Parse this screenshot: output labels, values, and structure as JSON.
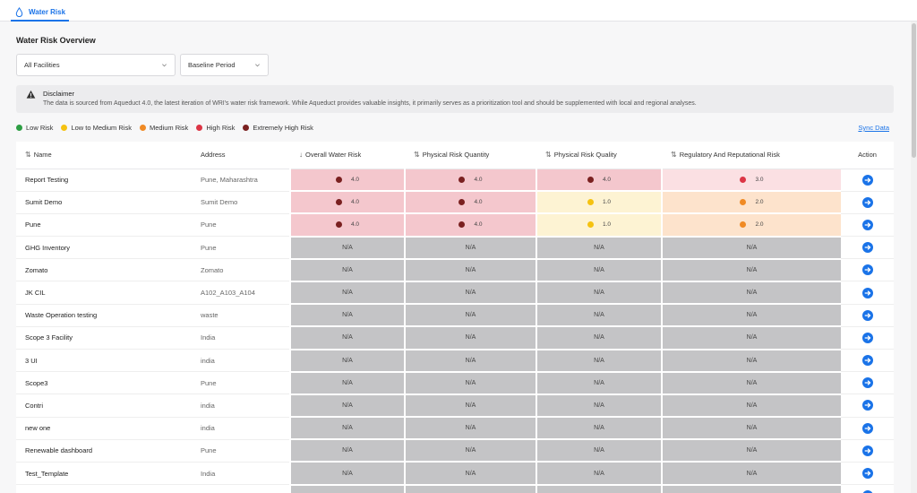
{
  "tab": {
    "label": "Water Risk",
    "icon": "water-drop-icon"
  },
  "page": {
    "title": "Water Risk Overview"
  },
  "filters": {
    "facility": {
      "value": "All Facilities"
    },
    "period": {
      "value": "Baseline Period"
    }
  },
  "disclaimer": {
    "title": "Disclaimer",
    "text": "The data is sourced from Aqueduct 4.0, the latest iteration of WRI's water risk framework. While Aqueduct provides valuable insights, it primarily serves as a prioritization tool and should be supplemented with local and regional analyses."
  },
  "legend": [
    {
      "label": "Low Risk",
      "color": "#2e9e44"
    },
    {
      "label": "Low to Medium Risk",
      "color": "#f5c211"
    },
    {
      "label": "Medium Risk",
      "color": "#f08a24"
    },
    {
      "label": "High Risk",
      "color": "#dc3545"
    },
    {
      "label": "Extremely High Risk",
      "color": "#7a2020"
    }
  ],
  "sync_label": "Sync Data",
  "columns": {
    "name": "Name",
    "address": "Address",
    "overall": "Overall Water Risk",
    "quantity": "Physical Risk Quantity",
    "quality": "Physical Risk Quality",
    "regulatory": "Regulatory And Reputational Risk",
    "action": "Action"
  },
  "na_label": "N/A",
  "rows": [
    {
      "name": "Report Testing",
      "address": "Pune, Maharashtra",
      "risks": [
        {
          "value": "4.0",
          "level": "extreme"
        },
        {
          "value": "4.0",
          "level": "extreme"
        },
        {
          "value": "4.0",
          "level": "extreme"
        },
        {
          "value": "3.0",
          "level": "high"
        }
      ]
    },
    {
      "name": "Sumit Demo",
      "address": "Sumit Demo",
      "risks": [
        {
          "value": "4.0",
          "level": "extreme"
        },
        {
          "value": "4.0",
          "level": "extreme"
        },
        {
          "value": "1.0",
          "level": "lowmed"
        },
        {
          "value": "2.0",
          "level": "medium"
        }
      ]
    },
    {
      "name": "Pune",
      "address": "Pune",
      "risks": [
        {
          "value": "4.0",
          "level": "extreme"
        },
        {
          "value": "4.0",
          "level": "extreme"
        },
        {
          "value": "1.0",
          "level": "lowmed"
        },
        {
          "value": "2.0",
          "level": "medium"
        }
      ]
    },
    {
      "name": "GHG Inventory",
      "address": "Pune",
      "risks": null
    },
    {
      "name": "Zomato",
      "address": "Zomato",
      "risks": null
    },
    {
      "name": "JK CIL",
      "address": "A102_A103_A104",
      "risks": null
    },
    {
      "name": "Waste Operation testing",
      "address": "waste",
      "risks": null
    },
    {
      "name": "Scope 3 Facility",
      "address": "India",
      "risks": null
    },
    {
      "name": "3 UI",
      "address": "india",
      "risks": null
    },
    {
      "name": "Scope3",
      "address": "Pune",
      "risks": null
    },
    {
      "name": "Contri",
      "address": "india",
      "risks": null
    },
    {
      "name": "new one",
      "address": "india",
      "risks": null
    },
    {
      "name": "Renewable dashboard",
      "address": "Pune",
      "risks": null
    },
    {
      "name": "Test_Template",
      "address": "India",
      "risks": null
    },
    {
      "name": "",
      "address": "",
      "risks": null
    }
  ],
  "level_styles": {
    "extreme": {
      "bg": "#f4c7cd",
      "dot": "#7a2020"
    },
    "high": {
      "bg": "#fbe0e3",
      "dot": "#dc3545"
    },
    "medium": {
      "bg": "#fde3cc",
      "dot": "#f08a24"
    },
    "lowmed": {
      "bg": "#fdf3d3",
      "dot": "#f5c211"
    }
  }
}
